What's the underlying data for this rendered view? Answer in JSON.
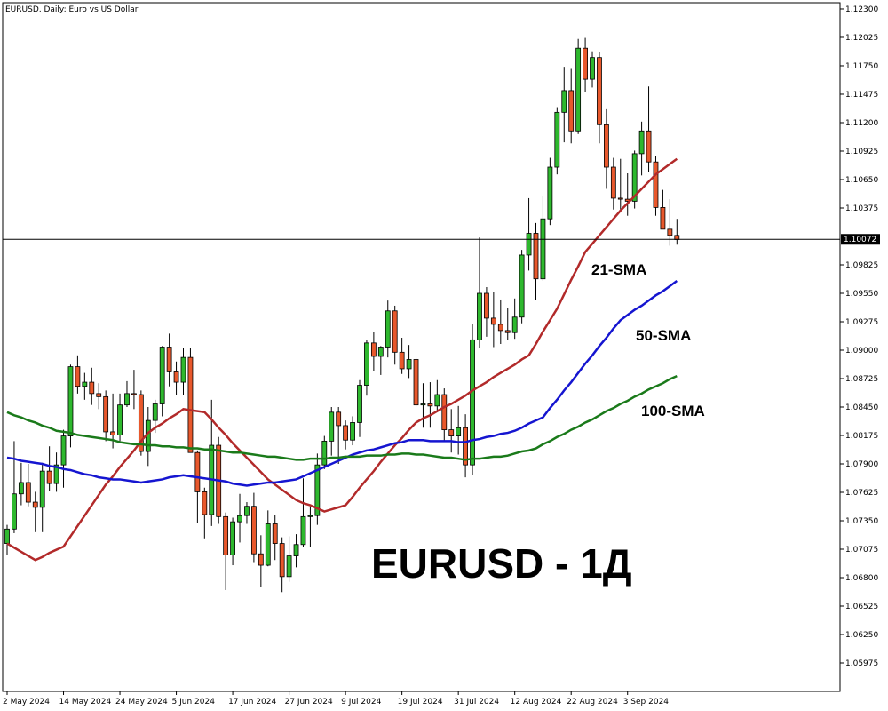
{
  "chart_data": {
    "type": "candlestick",
    "title": "EURUSD, Daily:  Euro vs US Dollar",
    "watermark": "EURUSD - 1Д",
    "categories": [
      "2 May 2024",
      null,
      null,
      null,
      null,
      null,
      null,
      null,
      "14 May 2024",
      null,
      null,
      null,
      null,
      null,
      null,
      null,
      "24 May 2024",
      null,
      null,
      null,
      null,
      null,
      null,
      null,
      "5 Jun 2024",
      null,
      null,
      null,
      null,
      null,
      null,
      null,
      "17 Jun 2024",
      null,
      null,
      null,
      null,
      null,
      null,
      null,
      "27 Jun 2024",
      null,
      null,
      null,
      null,
      null,
      null,
      null,
      "9 Jul 2024",
      null,
      null,
      null,
      null,
      null,
      null,
      null,
      "19 Jul 2024",
      null,
      null,
      null,
      null,
      null,
      null,
      null,
      "31 Jul 2024",
      null,
      null,
      null,
      null,
      null,
      null,
      null,
      "12 Aug 2024",
      null,
      null,
      null,
      null,
      null,
      null,
      null,
      "22 Aug 2024",
      null,
      null,
      null,
      null,
      null,
      null,
      null,
      "3 Sep 2024",
      null,
      null,
      null,
      null,
      null,
      null,
      null
    ],
    "up_color": "#2eb82e",
    "down_color": "#e8582c",
    "open": [
      1.0713,
      1.0727,
      1.0761,
      1.0772,
      1.0753,
      1.0748,
      1.0783,
      1.0771,
      1.0789,
      1.0817,
      1.0884,
      1.0865,
      1.0869,
      1.0858,
      1.0855,
      1.0821,
      1.0818,
      1.0847,
      1.0858,
      1.0857,
      1.0802,
      1.0832,
      1.0848,
      1.0903,
      1.0879,
      1.0869,
      1.0893,
      1.0801,
      1.0763,
      1.0741,
      1.0808,
      1.0739,
      1.0702,
      1.0734,
      1.074,
      1.0749,
      1.0703,
      1.0692,
      1.0732,
      1.0713,
      1.0681,
      1.0701,
      1.0712,
      1.0739,
      1.074,
      1.0789,
      1.0812,
      1.084,
      1.0827,
      1.0813,
      1.083,
      1.0866,
      1.0907,
      1.0894,
      1.0903,
      1.0938,
      1.0898,
      1.0882,
      1.0891,
      1.0847,
      1.0848,
      1.0846,
      1.0857,
      1.0823,
      1.0817,
      1.0825,
      1.0789,
      1.091,
      1.0955,
      1.0931,
      1.0925,
      1.0919,
      1.0917,
      1.0932,
      1.0992,
      1.1013,
      1.0969,
      1.1027,
      1.1077,
      1.113,
      1.1151,
      1.1112,
      1.1192,
      1.1162,
      1.1183,
      1.1118,
      1.1077,
      1.1047,
      1.1046,
      1.1044,
      1.109,
      1.1112,
      1.1082,
      1.1038,
      1.1017,
      1.1011
    ],
    "high": [
      1.0731,
      1.0812,
      1.0791,
      1.079,
      1.0763,
      1.0791,
      1.0807,
      1.0801,
      1.0823,
      1.0886,
      1.0895,
      1.0878,
      1.0883,
      1.0868,
      1.0861,
      1.0858,
      1.0858,
      1.087,
      1.0881,
      1.0861,
      1.0845,
      1.0852,
      1.0904,
      1.0916,
      1.0889,
      1.0902,
      1.0902,
      1.0803,
      1.0767,
      1.0852,
      1.0816,
      1.0743,
      1.0738,
      1.0761,
      1.0753,
      1.0762,
      1.0721,
      1.0745,
      1.0741,
      1.0719,
      1.072,
      1.0722,
      1.0776,
      1.0749,
      1.08,
      1.0817,
      1.0845,
      1.0845,
      1.0832,
      1.0836,
      1.0871,
      1.091,
      1.0918,
      1.0904,
      1.0948,
      1.0943,
      1.0912,
      1.0905,
      1.0893,
      1.0868,
      1.0869,
      1.0871,
      1.0863,
      1.0843,
      1.0846,
      1.0838,
      1.0925,
      1.1009,
      1.0961,
      1.0956,
      1.0949,
      1.0941,
      1.095,
      1.0997,
      1.1047,
      1.1023,
      1.1049,
      1.1086,
      1.1135,
      1.1174,
      1.1172,
      1.1201,
      1.1202,
      1.1189,
      1.1188,
      1.1133,
      1.1086,
      1.1085,
      1.1071,
      1.1093,
      1.1121,
      1.1155,
      1.1088,
      1.1055,
      1.1046,
      1.1027
    ],
    "low": [
      1.0702,
      1.0723,
      1.075,
      1.0749,
      1.0724,
      1.0724,
      1.0764,
      1.0763,
      1.0767,
      1.0806,
      1.0858,
      1.0852,
      1.0847,
      1.0843,
      1.0812,
      1.0805,
      1.0812,
      1.0845,
      1.0843,
      1.0798,
      1.0788,
      1.082,
      1.0836,
      1.0865,
      1.0857,
      1.0857,
      1.0801,
      1.0733,
      1.0718,
      1.073,
      1.0732,
      1.0668,
      1.0692,
      1.0714,
      1.0732,
      1.0695,
      1.0671,
      1.0691,
      1.0697,
      1.0666,
      1.0676,
      1.069,
      1.071,
      1.071,
      1.0731,
      1.0785,
      1.0798,
      1.079,
      1.0804,
      1.0808,
      1.0816,
      1.0856,
      1.088,
      1.0876,
      1.0893,
      1.0886,
      1.0877,
      1.0873,
      1.0845,
      1.0825,
      1.0825,
      1.084,
      1.0812,
      1.0801,
      1.0799,
      1.0777,
      1.0779,
      1.0902,
      1.0913,
      1.0903,
      1.0906,
      1.091,
      1.0911,
      1.0926,
      1.0977,
      1.0949,
      1.0967,
      1.1021,
      1.107,
      1.1101,
      1.11,
      1.1109,
      1.115,
      1.1154,
      1.11,
      1.1056,
      1.1036,
      1.1034,
      1.103,
      1.1037,
      1.1069,
      1.1072,
      1.103,
      1.1017,
      1.1001,
      1.1002
    ],
    "close": [
      1.0727,
      1.0761,
      1.0772,
      1.0753,
      1.0748,
      1.0783,
      1.0771,
      1.0789,
      1.0817,
      1.0884,
      1.0865,
      1.0869,
      1.0858,
      1.0855,
      1.0821,
      1.0818,
      1.0847,
      1.0858,
      1.0857,
      1.0802,
      1.0832,
      1.0848,
      1.0903,
      1.0879,
      1.0869,
      1.0893,
      1.0801,
      1.0763,
      1.0741,
      1.0808,
      1.0739,
      1.0702,
      1.0734,
      1.074,
      1.0749,
      1.0703,
      1.0692,
      1.0732,
      1.0713,
      1.0681,
      1.0701,
      1.0712,
      1.0739,
      1.074,
      1.0789,
      1.0812,
      1.084,
      1.0827,
      1.0813,
      1.083,
      1.0866,
      1.0907,
      1.0894,
      1.0903,
      1.0938,
      1.0898,
      1.0882,
      1.0891,
      1.0847,
      1.0848,
      1.0846,
      1.0857,
      1.0823,
      1.0817,
      1.0825,
      1.0789,
      1.091,
      1.0955,
      1.0931,
      1.0925,
      1.0919,
      1.0917,
      1.0932,
      1.0992,
      1.1013,
      1.0969,
      1.1027,
      1.1077,
      1.113,
      1.1151,
      1.1112,
      1.1192,
      1.1162,
      1.1183,
      1.1118,
      1.1077,
      1.1047,
      1.1046,
      1.1044,
      1.109,
      1.1112,
      1.1082,
      1.1038,
      1.1017,
      1.1011,
      1.1007
    ],
    "series": [
      {
        "name": "21-SMA",
        "color": "#b22a2a",
        "values": [
          1.0713,
          1.0709,
          1.0705,
          1.0701,
          1.0697,
          1.07,
          1.0704,
          1.0707,
          1.071,
          1.072,
          1.073,
          1.074,
          1.075,
          1.076,
          1.077,
          1.0778,
          1.0787,
          1.0795,
          1.0803,
          1.0812,
          1.082,
          1.0825,
          1.0829,
          1.0834,
          1.0838,
          1.0843,
          1.0842,
          1.0841,
          1.084,
          1.0833,
          1.0825,
          1.0818,
          1.081,
          1.0803,
          1.0796,
          1.0789,
          1.0782,
          1.0775,
          1.077,
          1.0765,
          1.076,
          1.0755,
          1.0752,
          1.075,
          1.0747,
          1.0744,
          1.0746,
          1.0748,
          1.075,
          1.0758,
          1.0767,
          1.0775,
          1.0783,
          1.0792,
          1.08,
          1.0808,
          1.0815,
          1.0823,
          1.083,
          1.0834,
          1.0837,
          1.0841,
          1.0845,
          1.0848,
          1.0852,
          1.0856,
          1.0861,
          1.0865,
          1.0869,
          1.0874,
          1.0878,
          1.0882,
          1.0886,
          1.0891,
          1.0895,
          1.0906,
          1.0918,
          1.0929,
          1.094,
          1.0954,
          1.0968,
          1.0981,
          1.0995,
          1.1003,
          1.1011,
          1.1019,
          1.1027,
          1.1035,
          1.1042,
          1.1049,
          1.1056,
          1.1063,
          1.107,
          1.1075,
          1.108,
          1.1085
        ]
      },
      {
        "name": "50-SMA",
        "color": "#1515d0",
        "values": [
          1.0796,
          1.0795,
          1.0793,
          1.0792,
          1.0791,
          1.079,
          1.0788,
          1.0787,
          1.0785,
          1.0784,
          1.0782,
          1.078,
          1.0779,
          1.0777,
          1.0776,
          1.0775,
          1.0775,
          1.0774,
          1.0773,
          1.0772,
          1.0773,
          1.0774,
          1.0775,
          1.0777,
          1.0778,
          1.0779,
          1.0778,
          1.0777,
          1.0776,
          1.0775,
          1.0774,
          1.0773,
          1.0771,
          1.077,
          1.0769,
          1.077,
          1.0771,
          1.0772,
          1.0772,
          1.0773,
          1.0774,
          1.0775,
          1.0778,
          1.0781,
          1.0784,
          1.0787,
          1.079,
          1.0793,
          1.0796,
          1.0799,
          1.0801,
          1.0803,
          1.0804,
          1.0806,
          1.0808,
          1.081,
          1.0811,
          1.0813,
          1.0813,
          1.0813,
          1.0812,
          1.0812,
          1.0812,
          1.0812,
          1.0811,
          1.0811,
          1.0813,
          1.0814,
          1.0816,
          1.0817,
          1.0819,
          1.082,
          1.0822,
          1.0825,
          1.0829,
          1.0832,
          1.0835,
          1.0844,
          1.0852,
          1.0861,
          1.0869,
          1.0878,
          1.0887,
          1.0895,
          1.0904,
          1.0912,
          1.0921,
          1.0929,
          1.0934,
          1.0939,
          1.0943,
          1.0948,
          1.0953,
          1.0957,
          1.0962,
          1.0967
        ]
      },
      {
        "name": "100-SMA",
        "color": "#1a7a1a",
        "values": [
          1.084,
          1.0837,
          1.0835,
          1.0832,
          1.083,
          1.0827,
          1.0825,
          1.0822,
          1.0821,
          1.082,
          1.0818,
          1.0817,
          1.0816,
          1.0815,
          1.0814,
          1.0813,
          1.0811,
          1.081,
          1.0809,
          1.0809,
          1.0808,
          1.0808,
          1.0807,
          1.0807,
          1.0806,
          1.0806,
          1.0805,
          1.0805,
          1.0804,
          1.0804,
          1.0803,
          1.0802,
          1.0801,
          1.0801,
          1.08,
          1.0799,
          1.0798,
          1.0797,
          1.0797,
          1.0796,
          1.0795,
          1.0794,
          1.0794,
          1.0795,
          1.0795,
          1.0795,
          1.0796,
          1.0796,
          1.0797,
          1.0797,
          1.0797,
          1.0798,
          1.0798,
          1.0798,
          1.0799,
          1.0799,
          1.08,
          1.08,
          1.0799,
          1.0799,
          1.0798,
          1.0797,
          1.0796,
          1.0796,
          1.0795,
          1.0794,
          1.0795,
          1.0795,
          1.0796,
          1.0797,
          1.0797,
          1.0798,
          1.08,
          1.0802,
          1.0803,
          1.0805,
          1.0809,
          1.0812,
          1.0816,
          1.0819,
          1.0823,
          1.0826,
          1.083,
          1.0833,
          1.0837,
          1.0841,
          1.0844,
          1.0848,
          1.0851,
          1.0855,
          1.0858,
          1.0862,
          1.0865,
          1.0868,
          1.0872,
          1.0875
        ]
      }
    ],
    "current_price": {
      "value": 1.10072,
      "label": "1.10072"
    },
    "ylim": [
      1.057,
      1.1236
    ],
    "yticks": [
      {
        "value": 1.123,
        "label": "1.12300"
      },
      {
        "value": 1.12025,
        "label": "1.12025"
      },
      {
        "value": 1.1175,
        "label": "1.11750"
      },
      {
        "value": 1.11475,
        "label": "1.11475"
      },
      {
        "value": 1.112,
        "label": "1.11200"
      },
      {
        "value": 1.10925,
        "label": "1.10925"
      },
      {
        "value": 1.1065,
        "label": "1.10650"
      },
      {
        "value": 1.10375,
        "label": "1.10375"
      },
      {
        "value": 1.09825,
        "label": "1.09825"
      },
      {
        "value": 1.0955,
        "label": "1.09550"
      },
      {
        "value": 1.09275,
        "label": "1.09275"
      },
      {
        "value": 1.09,
        "label": "1.09000"
      },
      {
        "value": 1.08725,
        "label": "1.08725"
      },
      {
        "value": 1.0845,
        "label": "1.08450"
      },
      {
        "value": 1.08175,
        "label": "1.08175"
      },
      {
        "value": 1.079,
        "label": "1.07900"
      },
      {
        "value": 1.07625,
        "label": "1.07625"
      },
      {
        "value": 1.0735,
        "label": "1.07350"
      },
      {
        "value": 1.07075,
        "label": "1.07075"
      },
      {
        "value": 1.068,
        "label": "1.06800"
      },
      {
        "value": 1.06525,
        "label": "1.06525"
      },
      {
        "value": 1.0625,
        "label": "1.06250"
      },
      {
        "value": 1.05975,
        "label": "1.05975"
      }
    ]
  }
}
